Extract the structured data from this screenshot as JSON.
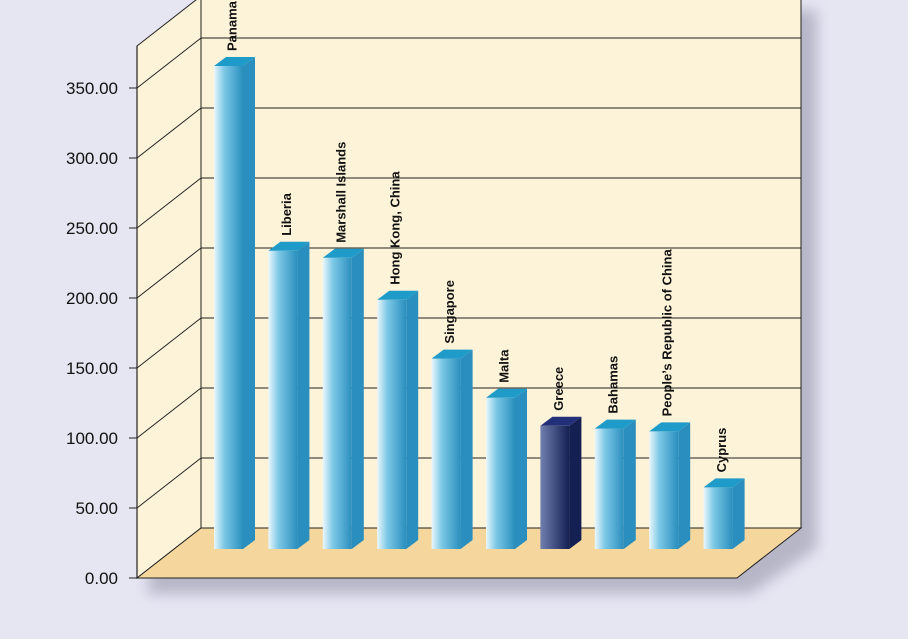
{
  "chart_data": {
    "type": "bar",
    "title": "",
    "xlabel": "",
    "ylabel": "",
    "ylim": [
      0,
      350
    ],
    "yticks": [
      "0.00",
      "50.00",
      "100.00",
      "150.00",
      "200.00",
      "250.00",
      "300.00",
      "350.00"
    ],
    "grid": true,
    "categories": [
      "Panama",
      "Liberia",
      "Marshall Islands",
      "Hong Kong, China",
      "Singapore",
      "Malta",
      "Greece",
      "Bahamas",
      "People’s Republic of China",
      "Cyprus"
    ],
    "values": [
      345,
      213,
      208,
      178,
      136,
      108,
      88,
      86,
      84,
      44
    ],
    "highlight": "Greece",
    "colors": {
      "background": "#e6e6f3",
      "back_wall": "#fdf3d8",
      "floor": "#f5d79e",
      "bar_light": "#eaf7fc",
      "bar_mid": "#7cc8e6",
      "bar_dark": "#2a8fbe",
      "bar_top": "#1e9bc8",
      "highlight_light": "#6f7fb0",
      "highlight_dark": "#141f52",
      "highlight_top": "#22307a"
    }
  }
}
